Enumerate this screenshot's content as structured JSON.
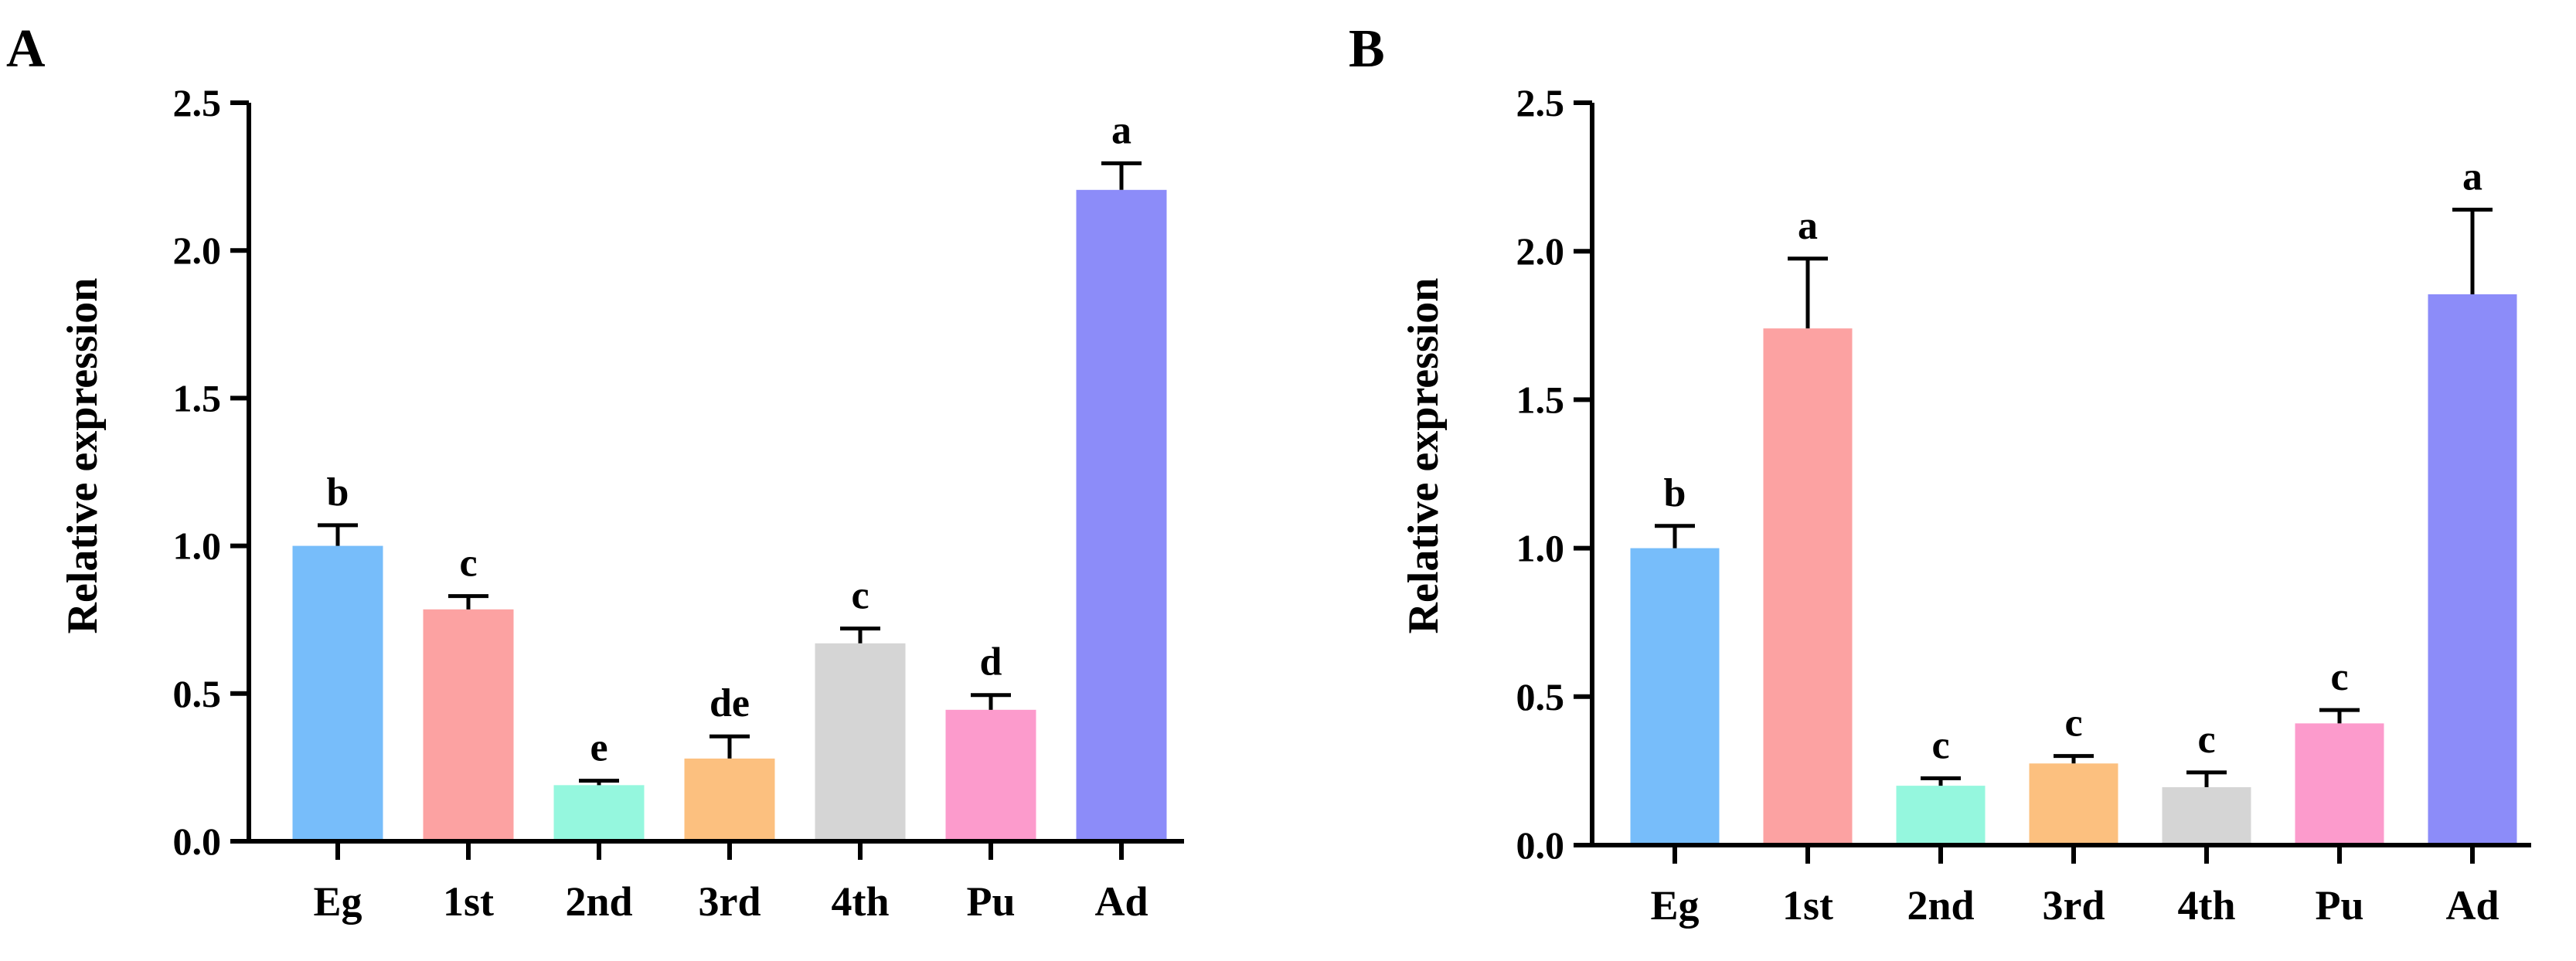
{
  "chart_data": [
    {
      "panel": "A",
      "type": "bar",
      "title": "",
      "xlabel": "",
      "ylabel": "Relative expression",
      "ylim": [
        0,
        2.5
      ],
      "yticks": [
        "0.0",
        "0.5",
        "1.0",
        "1.5",
        "2.0",
        "2.5"
      ],
      "categories": [
        "Eg",
        "1st",
        "2nd",
        "3rd",
        "4th",
        "Pu",
        "Ad"
      ],
      "values": [
        1.0,
        0.785,
        0.19,
        0.28,
        0.67,
        0.445,
        2.205
      ],
      "errors": [
        0.07,
        0.045,
        0.015,
        0.075,
        0.05,
        0.05,
        0.09
      ],
      "significance": [
        "b",
        "c",
        "e",
        "de",
        "c",
        "d",
        "a"
      ],
      "colors": [
        "#77bdfa",
        "#fca2a2",
        "#95f7de",
        "#fcc07f",
        "#d5d5d5",
        "#fc9bcc",
        "#8c8cf9"
      ]
    },
    {
      "panel": "B",
      "type": "bar",
      "title": "",
      "xlabel": "",
      "ylabel": "Relative expression",
      "ylim": [
        0,
        2.5
      ],
      "yticks": [
        "0.0",
        "0.5",
        "1.0",
        "1.5",
        "2.0",
        "2.5"
      ],
      "categories": [
        "Eg",
        "1st",
        "2nd",
        "3rd",
        "4th",
        "Pu",
        "Ad"
      ],
      "values": [
        1.0,
        1.74,
        0.2,
        0.275,
        0.195,
        0.41,
        1.855
      ],
      "errors": [
        0.075,
        0.235,
        0.025,
        0.025,
        0.05,
        0.045,
        0.285
      ],
      "significance": [
        "b",
        "a",
        "c",
        "c",
        "c",
        "c",
        "a"
      ],
      "colors": [
        "#77bdfa",
        "#fca2a2",
        "#95f7de",
        "#fcc07f",
        "#d5d5d5",
        "#fc9bcc",
        "#8c8cf9"
      ]
    }
  ]
}
